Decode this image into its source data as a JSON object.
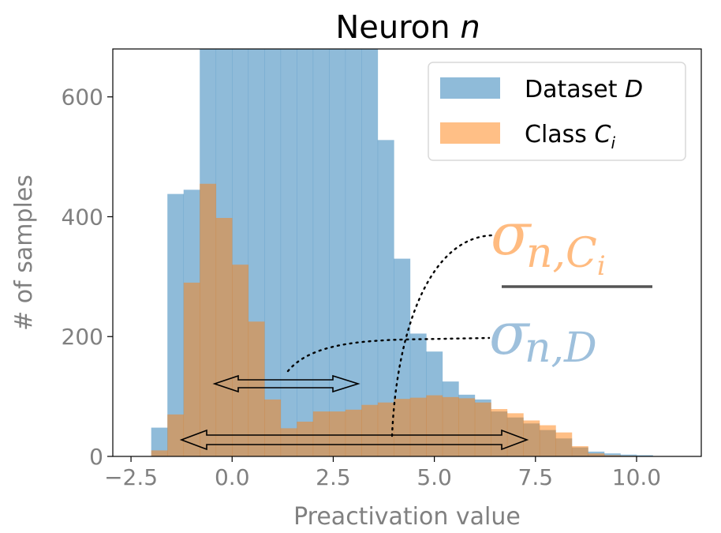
{
  "chart_data": {
    "type": "bar",
    "title": "Neuron",
    "title_var": "n",
    "xlabel": "Preactivation value",
    "ylabel": "# of samples",
    "xlim": [
      -2.95,
      11.6
    ],
    "ylim": [
      0,
      680
    ],
    "xticks": [
      -2.5,
      0.0,
      2.5,
      5.0,
      7.5,
      10.0
    ],
    "xtick_labels": [
      "−2.5",
      "0.0",
      "2.5",
      "5.0",
      "7.5",
      "10.0"
    ],
    "yticks": [
      0,
      200,
      400,
      600
    ],
    "ytick_labels": [
      "0",
      "200",
      "400",
      "600"
    ],
    "bin_edges": [
      -2.0,
      -1.6,
      -1.2,
      -0.8,
      -0.4,
      0.0,
      0.4,
      0.8,
      1.2,
      1.6,
      2.0,
      2.4,
      2.8,
      3.2,
      3.6,
      4.0,
      4.4,
      4.8,
      5.2,
      5.6,
      6.0,
      6.4,
      6.8,
      7.2,
      7.6,
      8.0,
      8.4,
      8.8,
      9.2,
      9.6,
      10.0,
      10.4
    ],
    "series": [
      {
        "name": "Dataset",
        "name_var": "D",
        "color": "#1f77b4",
        "values": [
          48,
          438,
          445,
          680,
          680,
          680,
          680,
          680,
          680,
          680,
          680,
          680,
          680,
          680,
          528,
          330,
          205,
          175,
          125,
          103,
          95,
          75,
          65,
          55,
          44,
          30,
          15,
          8,
          5,
          3,
          2
        ]
      },
      {
        "name": "Class",
        "name_var": "C",
        "name_sub": "i",
        "color": "#ff7f0e",
        "values": [
          10,
          70,
          290,
          455,
          398,
          320,
          225,
          95,
          47,
          58,
          75,
          75,
          78,
          86,
          90,
          96,
          98,
          102,
          99,
          97,
          90,
          79,
          72,
          60,
          52,
          40,
          17,
          5,
          2,
          1,
          0
        ]
      }
    ],
    "legend_position": "top-right",
    "annotation": {
      "numerator": "σ",
      "numerator_sub": "n,C",
      "numerator_subsub": "i",
      "denominator": "σ",
      "denominator_sub": "n,D"
    }
  }
}
